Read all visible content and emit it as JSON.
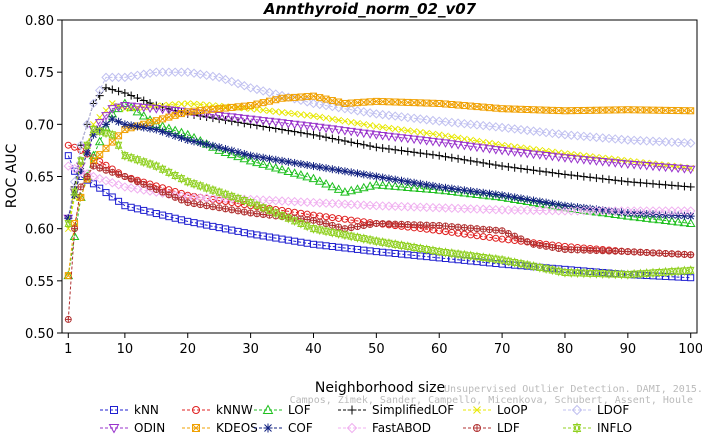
{
  "chart_data": {
    "type": "line",
    "title": "Annthyroid_norm_02_v07",
    "xlabel": "Neighborhood size",
    "ylabel": "ROC AUC",
    "xlim": [
      0,
      101
    ],
    "ylim": [
      0.5,
      0.8
    ],
    "x_ticks": [
      1,
      10,
      20,
      30,
      40,
      50,
      60,
      70,
      80,
      90,
      100
    ],
    "y_ticks": [
      0.5,
      0.55,
      0.6,
      0.65,
      0.7,
      0.75,
      0.8
    ],
    "x_tick_labels": [
      "1",
      "10",
      "20",
      "30",
      "40",
      "50",
      "60",
      "70",
      "80",
      "90",
      "100"
    ],
    "y_tick_labels": [
      "0.50",
      "0.55",
      "0.60",
      "0.65",
      "0.70",
      "0.75",
      "0.80"
    ],
    "grid": false,
    "legend_position": "bottom",
    "credit_line1": "Unsupervised Outlier Detection. DAMI, 2015.",
    "credit_line2": "Campos, Zimek, Sander, Campello, Micenkova, Schubert, Assent, Houle",
    "series": [
      {
        "name": "kNN",
        "color": "#1f1fd0",
        "marker": "square",
        "points": [
          [
            1,
            0.67
          ],
          [
            2,
            0.655
          ],
          [
            3,
            0.65
          ],
          [
            5,
            0.643
          ],
          [
            10,
            0.622
          ],
          [
            20,
            0.607
          ],
          [
            30,
            0.595
          ],
          [
            40,
            0.585
          ],
          [
            50,
            0.578
          ],
          [
            60,
            0.572
          ],
          [
            70,
            0.566
          ],
          [
            80,
            0.561
          ],
          [
            90,
            0.556
          ],
          [
            100,
            0.553
          ]
        ]
      },
      {
        "name": "kNNW",
        "color": "#e02020",
        "marker": "circle",
        "points": [
          [
            1,
            0.68
          ],
          [
            2,
            0.678
          ],
          [
            3,
            0.675
          ],
          [
            5,
            0.668
          ],
          [
            10,
            0.65
          ],
          [
            20,
            0.632
          ],
          [
            30,
            0.622
          ],
          [
            40,
            0.613
          ],
          [
            50,
            0.605
          ],
          [
            60,
            0.598
          ],
          [
            70,
            0.59
          ],
          [
            80,
            0.583
          ],
          [
            90,
            0.578
          ],
          [
            100,
            0.575
          ]
        ]
      },
      {
        "name": "LOF",
        "color": "#20c020",
        "marker": "triangle",
        "points": [
          [
            1,
            0.555
          ],
          [
            3,
            0.63
          ],
          [
            5,
            0.67
          ],
          [
            8,
            0.71
          ],
          [
            10,
            0.72
          ],
          [
            15,
            0.7
          ],
          [
            20,
            0.69
          ],
          [
            25,
            0.675
          ],
          [
            30,
            0.665
          ],
          [
            40,
            0.648
          ],
          [
            45,
            0.635
          ],
          [
            50,
            0.642
          ],
          [
            60,
            0.637
          ],
          [
            70,
            0.63
          ],
          [
            80,
            0.62
          ],
          [
            90,
            0.612
          ],
          [
            100,
            0.605
          ]
        ]
      },
      {
        "name": "SimplifiedLOF",
        "color": "#000000",
        "marker": "plus",
        "points": [
          [
            1,
            0.61
          ],
          [
            2,
            0.64
          ],
          [
            3,
            0.68
          ],
          [
            4,
            0.7
          ],
          [
            5,
            0.72
          ],
          [
            7,
            0.735
          ],
          [
            10,
            0.73
          ],
          [
            15,
            0.718
          ],
          [
            20,
            0.71
          ],
          [
            30,
            0.7
          ],
          [
            40,
            0.69
          ],
          [
            50,
            0.678
          ],
          [
            60,
            0.67
          ],
          [
            70,
            0.66
          ],
          [
            80,
            0.652
          ],
          [
            90,
            0.645
          ],
          [
            100,
            0.64
          ]
        ]
      },
      {
        "name": "LoOP",
        "color": "#e8e800",
        "marker": "x",
        "points": [
          [
            1,
            0.6
          ],
          [
            3,
            0.66
          ],
          [
            5,
            0.7
          ],
          [
            8,
            0.72
          ],
          [
            10,
            0.715
          ],
          [
            20,
            0.72
          ],
          [
            30,
            0.715
          ],
          [
            40,
            0.708
          ],
          [
            50,
            0.698
          ],
          [
            60,
            0.69
          ],
          [
            70,
            0.68
          ],
          [
            80,
            0.672
          ],
          [
            90,
            0.665
          ],
          [
            100,
            0.658
          ]
        ]
      },
      {
        "name": "LDOF",
        "color": "#c0c0f0",
        "marker": "diamond",
        "points": [
          [
            1,
            0.61
          ],
          [
            3,
            0.68
          ],
          [
            5,
            0.72
          ],
          [
            7,
            0.745
          ],
          [
            10,
            0.745
          ],
          [
            15,
            0.75
          ],
          [
            20,
            0.75
          ],
          [
            25,
            0.745
          ],
          [
            30,
            0.735
          ],
          [
            40,
            0.72
          ],
          [
            50,
            0.71
          ],
          [
            60,
            0.703
          ],
          [
            70,
            0.697
          ],
          [
            80,
            0.69
          ],
          [
            90,
            0.685
          ],
          [
            100,
            0.682
          ]
        ]
      },
      {
        "name": "ODIN",
        "color": "#9933cc",
        "marker": "triangle-down",
        "points": [
          [
            1,
            0.61
          ],
          [
            3,
            0.66
          ],
          [
            5,
            0.695
          ],
          [
            8,
            0.715
          ],
          [
            10,
            0.718
          ],
          [
            20,
            0.712
          ],
          [
            30,
            0.705
          ],
          [
            40,
            0.698
          ],
          [
            50,
            0.69
          ],
          [
            60,
            0.683
          ],
          [
            70,
            0.675
          ],
          [
            80,
            0.668
          ],
          [
            90,
            0.662
          ],
          [
            100,
            0.657
          ]
        ]
      },
      {
        "name": "KDEOS",
        "color": "#f0a000",
        "marker": "boxed-x",
        "points": [
          [
            1,
            0.555
          ],
          [
            2,
            0.605
          ],
          [
            3,
            0.63
          ],
          [
            5,
            0.665
          ],
          [
            10,
            0.695
          ],
          [
            20,
            0.712
          ],
          [
            30,
            0.718
          ],
          [
            35,
            0.725
          ],
          [
            40,
            0.727
          ],
          [
            45,
            0.72
          ],
          [
            50,
            0.722
          ],
          [
            60,
            0.72
          ],
          [
            70,
            0.715
          ],
          [
            80,
            0.713
          ],
          [
            90,
            0.714
          ],
          [
            100,
            0.713
          ]
        ]
      },
      {
        "name": "COF",
        "color": "#102080",
        "marker": "asterisk",
        "points": [
          [
            1,
            0.61
          ],
          [
            3,
            0.655
          ],
          [
            5,
            0.69
          ],
          [
            8,
            0.705
          ],
          [
            10,
            0.7
          ],
          [
            15,
            0.695
          ],
          [
            20,
            0.685
          ],
          [
            25,
            0.678
          ],
          [
            30,
            0.67
          ],
          [
            40,
            0.66
          ],
          [
            50,
            0.65
          ],
          [
            60,
            0.64
          ],
          [
            70,
            0.632
          ],
          [
            80,
            0.622
          ],
          [
            90,
            0.615
          ],
          [
            100,
            0.612
          ]
        ]
      },
      {
        "name": "FastABOD",
        "color": "#f0b0f0",
        "marker": "diamond",
        "points": [
          [
            1,
            0.66
          ],
          [
            3,
            0.655
          ],
          [
            5,
            0.65
          ],
          [
            10,
            0.64
          ],
          [
            20,
            0.63
          ],
          [
            30,
            0.628
          ],
          [
            40,
            0.625
          ],
          [
            50,
            0.622
          ],
          [
            60,
            0.62
          ],
          [
            70,
            0.618
          ],
          [
            80,
            0.617
          ],
          [
            90,
            0.617
          ],
          [
            100,
            0.617
          ]
        ]
      },
      {
        "name": "LDF",
        "color": "#b03030",
        "marker": "circle-plus",
        "points": [
          [
            1,
            0.513
          ],
          [
            2,
            0.6
          ],
          [
            3,
            0.64
          ],
          [
            5,
            0.66
          ],
          [
            10,
            0.65
          ],
          [
            20,
            0.625
          ],
          [
            30,
            0.615
          ],
          [
            40,
            0.608
          ],
          [
            45,
            0.6
          ],
          [
            50,
            0.605
          ],
          [
            60,
            0.603
          ],
          [
            70,
            0.598
          ],
          [
            75,
            0.585
          ],
          [
            80,
            0.58
          ],
          [
            90,
            0.578
          ],
          [
            100,
            0.575
          ]
        ]
      },
      {
        "name": "INFLO",
        "color": "#90d020",
        "marker": "star",
        "points": [
          [
            1,
            0.605
          ],
          [
            3,
            0.665
          ],
          [
            5,
            0.695
          ],
          [
            8,
            0.69
          ],
          [
            10,
            0.67
          ],
          [
            15,
            0.66
          ],
          [
            20,
            0.645
          ],
          [
            25,
            0.635
          ],
          [
            30,
            0.625
          ],
          [
            40,
            0.6
          ],
          [
            50,
            0.588
          ],
          [
            60,
            0.578
          ],
          [
            70,
            0.57
          ],
          [
            80,
            0.558
          ],
          [
            90,
            0.556
          ],
          [
            100,
            0.56
          ]
        ]
      }
    ]
  }
}
